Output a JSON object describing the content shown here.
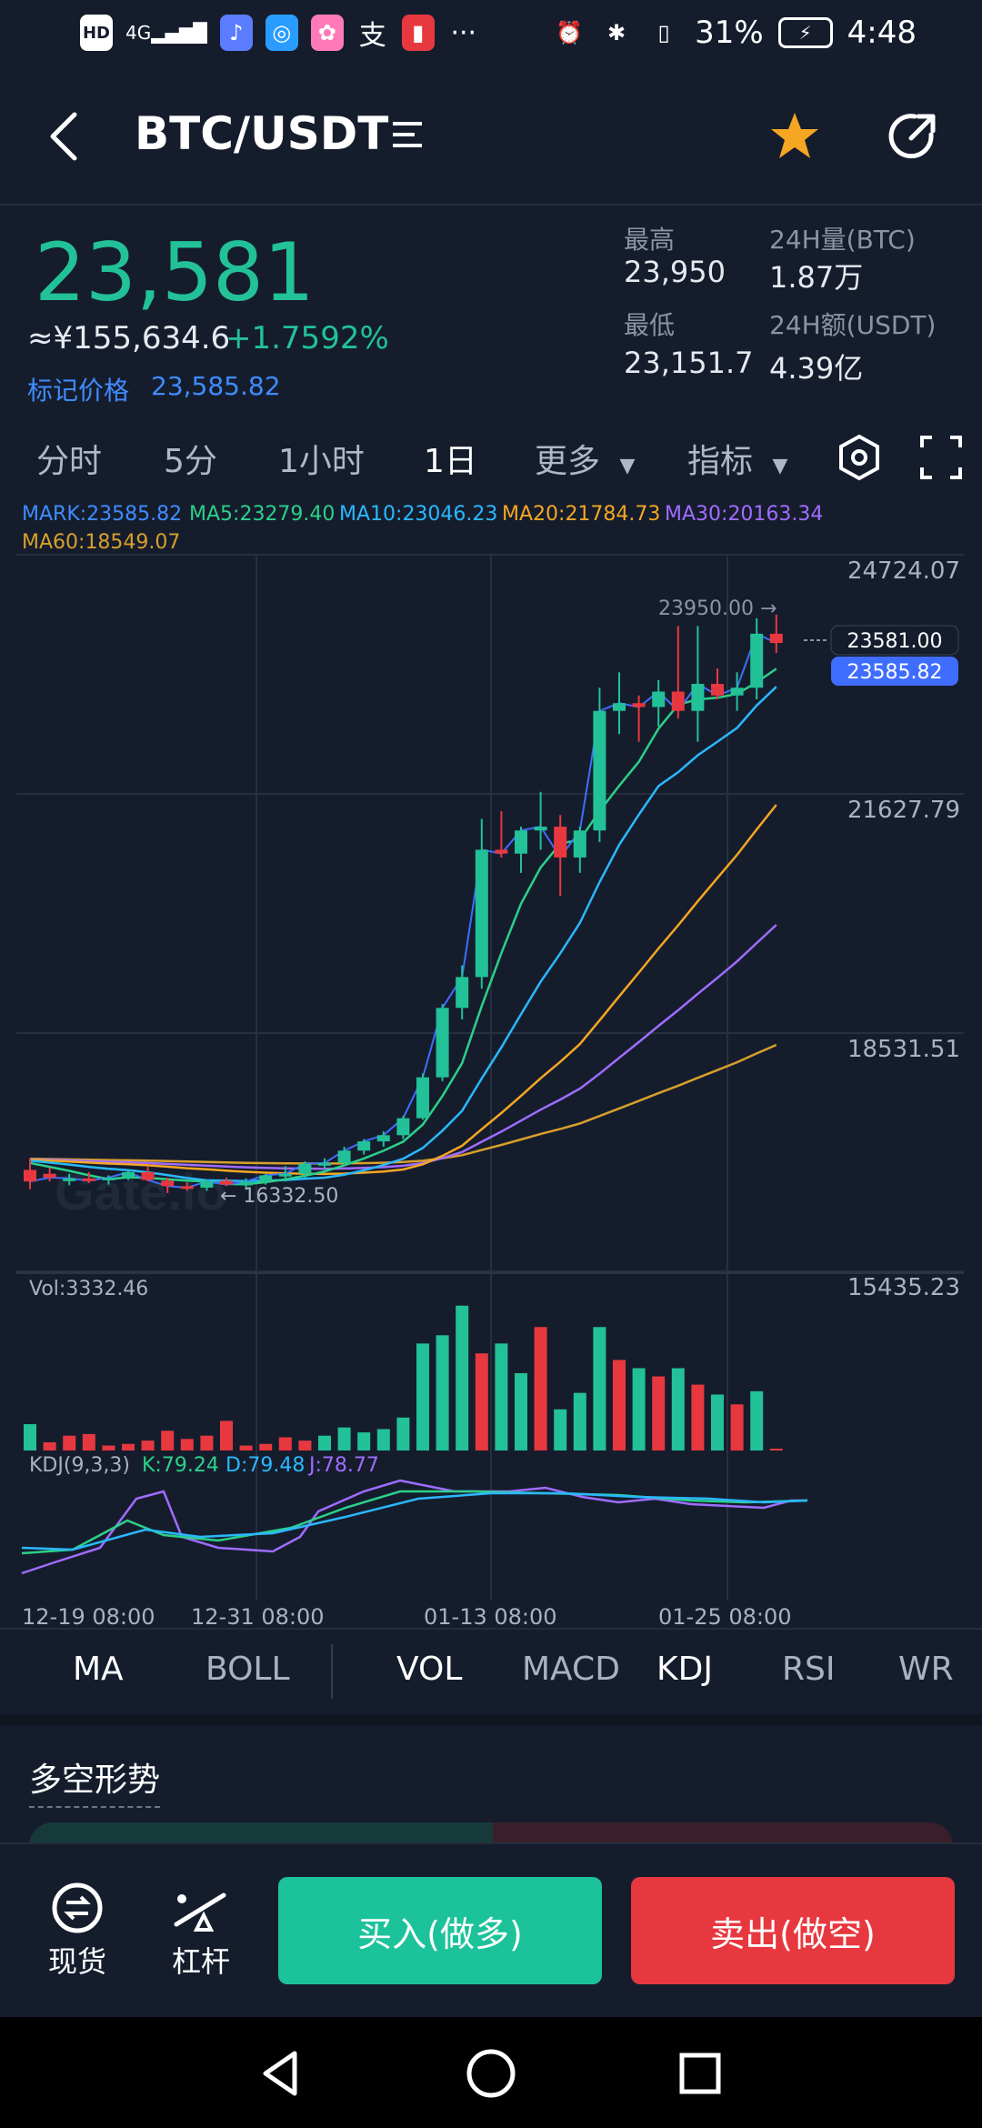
{
  "status_bar": {
    "left_icons": [
      "HD",
      "4G",
      "signal",
      "music-app",
      "browser-app",
      "photos-app",
      "alipay-app",
      "book-app",
      "more"
    ],
    "battery": "31%",
    "time": "4:48"
  },
  "header": {
    "pair": "BTC/USDT",
    "back_icon": "chevron-left-icon",
    "menu_icon": "list-icon",
    "star_icon": "star-icon",
    "share_icon": "share-icon"
  },
  "price": {
    "last": "23,581",
    "cny": "≈¥155,634.6",
    "change": "+1.7592%",
    "mark_label": "标记价格",
    "mark_value": "23,585.82"
  },
  "stats": {
    "high_label": "最高",
    "high_value": "23,950",
    "low_label": "最低",
    "low_value": "23,151.7",
    "vol_label": "24H量(BTC)",
    "vol_value": "1.87万",
    "amt_label": "24H额(USDT)",
    "amt_value": "4.39亿"
  },
  "timeframes": [
    "分时",
    "5分",
    "1小时",
    "1日",
    "更多",
    "指标"
  ],
  "active_timeframe": "1日",
  "ma_legend": {
    "mark": "MARK:23585.82",
    "ma5": "MA5:23279.40",
    "ma10": "MA10:23046.23",
    "ma20": "MA20:21784.73",
    "ma30": "MA30:20163.34",
    "ma60": "MA60:18549.07"
  },
  "chart_data": {
    "type": "candlestick",
    "y_axis_labels": [
      "24724.07",
      "21627.79",
      "18531.51",
      "15435.23"
    ],
    "ylim": [
      15435.23,
      24724.07
    ],
    "x_labels": [
      "12-19 08:00",
      "12-31 08:00",
      "01-13 08:00",
      "01-25 08:00"
    ],
    "annotations": {
      "high": "23950.00 →",
      "low": "← 16332.50",
      "last_tag": "23581.00",
      "mark_tag": "23585.82"
    },
    "watermark": "Gate.io",
    "candles": [
      [
        16750,
        16900,
        16500,
        16600
      ],
      [
        16700,
        16780,
        16600,
        16650
      ],
      [
        16620,
        16700,
        16550,
        16640
      ],
      [
        16640,
        16720,
        16580,
        16610
      ],
      [
        16620,
        16680,
        16560,
        16650
      ],
      [
        16650,
        16760,
        16620,
        16720
      ],
      [
        16720,
        16790,
        16600,
        16620
      ],
      [
        16610,
        16650,
        16450,
        16540
      ],
      [
        16540,
        16590,
        16480,
        16520
      ],
      [
        16520,
        16620,
        16480,
        16600
      ],
      [
        16610,
        16650,
        16540,
        16560
      ],
      [
        16550,
        16640,
        16500,
        16600
      ],
      [
        16600,
        16700,
        16560,
        16680
      ],
      [
        16680,
        16800,
        16600,
        16700
      ],
      [
        16700,
        16860,
        16650,
        16830
      ],
      [
        16830,
        16900,
        16760,
        16840
      ],
      [
        16840,
        17050,
        16800,
        17000
      ],
      [
        17000,
        17150,
        16950,
        17120
      ],
      [
        17120,
        17250,
        17050,
        17200
      ],
      [
        17200,
        17450,
        17150,
        17420
      ],
      [
        17420,
        18000,
        17400,
        17950
      ],
      [
        17950,
        18900,
        17900,
        18850
      ],
      [
        18850,
        19400,
        18700,
        19250
      ],
      [
        19250,
        21300,
        19100,
        20900
      ],
      [
        20900,
        21400,
        20800,
        20850
      ],
      [
        20850,
        21200,
        20600,
        21150
      ],
      [
        21150,
        21650,
        20900,
        21200
      ],
      [
        21200,
        21350,
        20300,
        20800
      ],
      [
        20800,
        21200,
        20600,
        21150
      ],
      [
        21150,
        23000,
        21000,
        22700
      ],
      [
        22700,
        23200,
        22400,
        22800
      ],
      [
        22800,
        22900,
        22300,
        22750
      ],
      [
        22750,
        23100,
        22500,
        22950
      ],
      [
        22950,
        23800,
        22600,
        22700
      ],
      [
        22700,
        23800,
        22300,
        23050
      ],
      [
        23050,
        23250,
        22850,
        22900
      ],
      [
        22900,
        23200,
        22700,
        23000
      ],
      [
        23000,
        23900,
        22850,
        23700
      ],
      [
        23700,
        23950,
        23450,
        23580
      ]
    ],
    "volume_label": "Vol:3332.46",
    "volumes": [
      [
        16,
        0
      ],
      [
        5,
        1
      ],
      [
        9,
        1
      ],
      [
        10,
        1
      ],
      [
        3,
        1
      ],
      [
        4,
        1
      ],
      [
        6,
        1
      ],
      [
        12,
        1
      ],
      [
        7,
        1
      ],
      [
        9,
        1
      ],
      [
        18,
        1
      ],
      [
        3,
        1
      ],
      [
        4,
        1
      ],
      [
        8,
        1
      ],
      [
        6,
        1
      ],
      [
        9,
        0
      ],
      [
        14,
        0
      ],
      [
        11,
        0
      ],
      [
        13,
        0
      ],
      [
        20,
        0
      ],
      [
        65,
        0
      ],
      [
        70,
        0
      ],
      [
        88,
        0
      ],
      [
        59,
        1
      ],
      [
        65,
        0
      ],
      [
        47,
        0
      ],
      [
        75,
        1
      ],
      [
        25,
        0
      ],
      [
        35,
        0
      ],
      [
        75,
        0
      ],
      [
        55,
        1
      ],
      [
        50,
        0
      ],
      [
        45,
        1
      ],
      [
        50,
        0
      ],
      [
        40,
        1
      ],
      [
        34,
        0
      ],
      [
        28,
        1
      ],
      [
        36,
        0
      ],
      [
        1,
        1
      ]
    ],
    "kdj_label": "KDJ(9,3,3)",
    "kdj_k": "K:79.24",
    "kdj_d": "D:79.48",
    "kdj_j": "J:78.77"
  },
  "indicator_tabs": [
    "MA",
    "BOLL",
    "VOL",
    "MACD",
    "KDJ",
    "RSI",
    "WR"
  ],
  "section_title": "多空形势",
  "bottom_bar": {
    "spot_label": "现货",
    "margin_label": "杠杆",
    "buy_label": "买入(做多)",
    "sell_label": "卖出(做空)"
  },
  "colors": {
    "bg": "#151d2d",
    "up": "#22c197",
    "down": "#e8383f",
    "mark": "#3f6dff",
    "ma5": "#2cd08a",
    "ma10": "#2ab8ff",
    "ma20": "#f5a623",
    "ma30": "#a06cff",
    "ma60": "#d8a02a"
  }
}
